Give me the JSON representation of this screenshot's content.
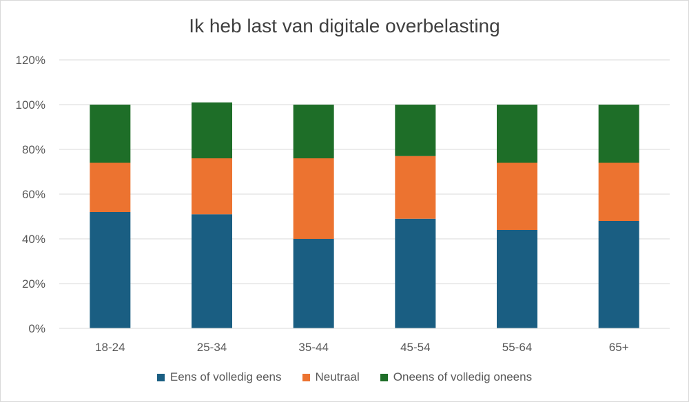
{
  "chart_data": {
    "type": "bar",
    "stacked": true,
    "title": "Ik heb last van digitale overbelasting",
    "categories": [
      "18-24",
      "25-34",
      "35-44",
      "45-54",
      "55-64",
      "65+"
    ],
    "series": [
      {
        "name": "Eens of volledig eens",
        "color": "#1a5e82",
        "values": [
          52,
          51,
          40,
          49,
          44,
          48
        ]
      },
      {
        "name": "Neutraal",
        "color": "#ec7330",
        "values": [
          22,
          25,
          36,
          28,
          30,
          26
        ]
      },
      {
        "name": "Oneens of volledig oneens",
        "color": "#1e6e28",
        "values": [
          26,
          25,
          24,
          23,
          26,
          26
        ]
      }
    ],
    "ylim": [
      0,
      120
    ],
    "yticks": [
      "0%",
      "20%",
      "40%",
      "60%",
      "80%",
      "100%",
      "120%"
    ],
    "grid": true,
    "legend_position": "bottom"
  }
}
